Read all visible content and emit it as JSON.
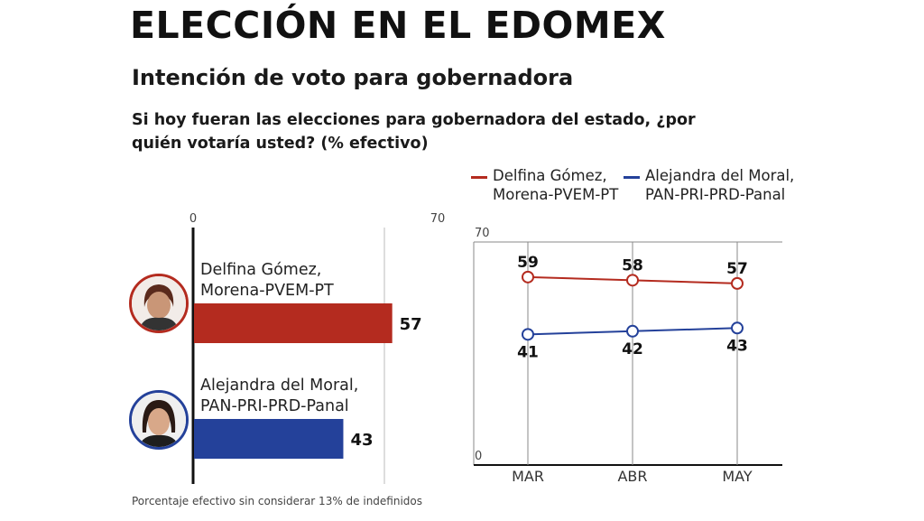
{
  "header": {
    "title": "ELECCIÓN EN EL EDOMEX",
    "subtitle": "Intención de voto para gobernadora",
    "question": "Si hoy fueran las elecciones para gobernadora del estado, ¿por quién votaría usted? (% efectivo)"
  },
  "footnote": "Porcentaje efectivo sin considerar 13% de indefinidos",
  "colors": {
    "delfina": "#b42b1f",
    "alejandra": "#24419a",
    "gridline": "#888888"
  },
  "legend": {
    "delfina": [
      "Delfina Gómez,",
      "Morena-PVEM-PT"
    ],
    "alejandra": [
      "Alejandra del Moral,",
      "PAN-PRI-PRD-Panal"
    ]
  },
  "chart_data": [
    {
      "type": "bar",
      "orientation": "horizontal",
      "categories": [
        "Delfina Gómez, Morena-PVEM-PT",
        "Alejandra del Moral, PAN-PRI-PRD-Panal"
      ],
      "category_lines": [
        [
          "Delfina Gómez,",
          "Morena-PVEM-PT"
        ],
        [
          "Alejandra del Moral,",
          "PAN-PRI-PRD-Panal"
        ]
      ],
      "values": [
        57,
        43
      ],
      "colors": [
        "#b42b1f",
        "#24419a"
      ],
      "xlim": [
        0,
        70
      ],
      "tick_labels": [
        "0",
        "70"
      ]
    },
    {
      "type": "line",
      "categories": [
        "MAR",
        "ABR",
        "MAY"
      ],
      "series": [
        {
          "name": "Delfina Gómez, Morena-PVEM-PT",
          "values": [
            59,
            58,
            57
          ],
          "color": "#b42b1f"
        },
        {
          "name": "Alejandra del Moral, PAN-PRI-PRD-Panal",
          "values": [
            41,
            42,
            43
          ],
          "color": "#24419a"
        }
      ],
      "ylim": [
        0,
        70
      ],
      "tick_labels": [
        "0",
        "70"
      ],
      "legend_position": "top"
    }
  ]
}
